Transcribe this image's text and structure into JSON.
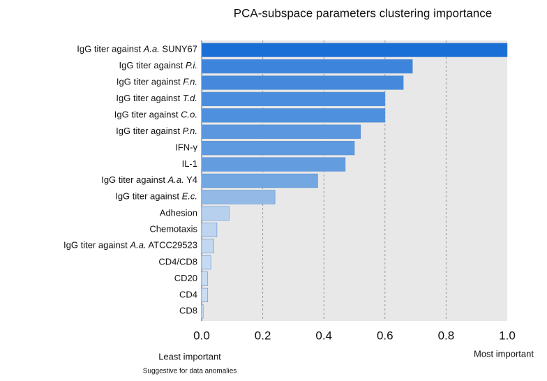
{
  "chart_data": {
    "type": "barh",
    "title": "PCA-subspace parameters clustering importance",
    "categories": [
      "IgG titer against A.a. SUNY67",
      "IgG titer against P.i.",
      "IgG titer against F.n.",
      "IgG titer against T.d.",
      "IgG titer against C.o.",
      "IgG titer against P.n.",
      "IFN-γ",
      "IL-1",
      "IgG titer against A.a. Y4",
      "IgG titer against E.c.",
      "Adhesion",
      "Chemotaxis",
      "IgG titer against A.a. ATCC29523",
      "CD4/CD8",
      "CD20",
      "CD4",
      "CD8"
    ],
    "values": [
      1.0,
      0.69,
      0.66,
      0.6,
      0.6,
      0.52,
      0.5,
      0.47,
      0.38,
      0.24,
      0.09,
      0.05,
      0.04,
      0.03,
      0.02,
      0.02,
      0.005
    ],
    "colors": [
      "#1a6fd6",
      "#3d85dc",
      "#4489dc",
      "#4a8dde",
      "#4e90de",
      "#5a97df",
      "#5e9ae0",
      "#639de0",
      "#73a7e2",
      "#93bae7",
      "#b7d0ee",
      "#bed4ef",
      "#c2d7f0",
      "#c6daf1",
      "#c9dcf1",
      "#cbddf2",
      "#cfe0f3"
    ],
    "xlim": [
      0,
      1
    ],
    "xticks": [
      {
        "value": 0,
        "label": "0.0"
      },
      0.2,
      0.4,
      0.6,
      0.8,
      {
        "value": 1,
        "label": "1.0"
      }
    ],
    "grid": true,
    "annotations": [
      "Least important",
      "Most important",
      "Suggestive for data anomalies"
    ]
  }
}
